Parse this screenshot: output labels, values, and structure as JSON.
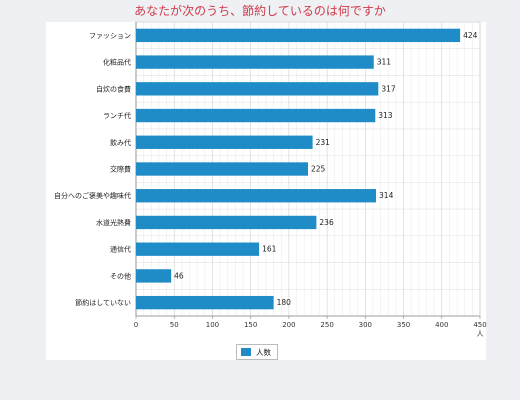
{
  "chart_data": {
    "type": "bar",
    "orientation": "horizontal",
    "title": "あなたが次のうち、節約しているのは何ですか",
    "categories": [
      "ファッション",
      "化粧品代",
      "自炊の食費",
      "ランチ代",
      "飲み代",
      "交際費",
      "自分へのご褒美や趣味代",
      "水道光熱費",
      "通信代",
      "その他",
      "節約はしていない"
    ],
    "series": [
      {
        "name": "人数",
        "values": [
          424,
          311,
          317,
          313,
          231,
          225,
          314,
          236,
          161,
          46,
          180
        ]
      }
    ],
    "xlabel": "人",
    "xlim": [
      0,
      450
    ],
    "xticks": [
      0,
      50,
      100,
      150,
      200,
      250,
      300,
      350,
      400,
      450
    ],
    "grid": true,
    "legend": "bottom-center",
    "bar_color": "#1f8cc8",
    "title_color": "#d03a4a"
  }
}
